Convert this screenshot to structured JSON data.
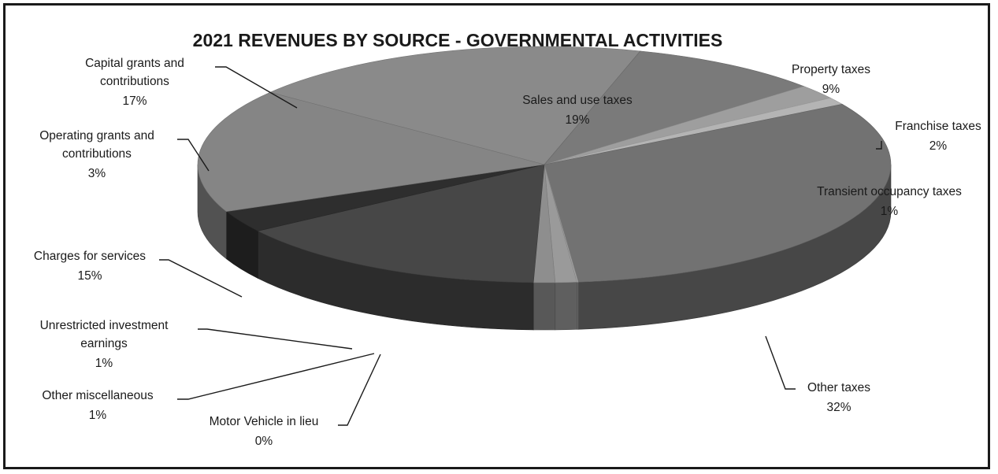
{
  "chart_data": {
    "type": "pie",
    "style": "3d",
    "title": "2021 REVENUES BY SOURCE - GOVERNMENTAL ACTIVITIES",
    "legend": "none",
    "slices": [
      {
        "label": "Sales and use taxes",
        "value": 19,
        "value_label": "19%"
      },
      {
        "label": "Property taxes",
        "value": 9,
        "value_label": "9%"
      },
      {
        "label": "Franchise taxes",
        "value": 2,
        "value_label": "2%"
      },
      {
        "label": "Transient occupancy taxes",
        "value": 1,
        "value_label": "1%"
      },
      {
        "label": "Other taxes",
        "value": 32,
        "value_label": "32%"
      },
      {
        "label": "Motor Vehicle in lieu",
        "value": 0,
        "value_label": "0%"
      },
      {
        "label": "Other miscellaneous",
        "value": 1,
        "value_label": "1%"
      },
      {
        "label": "Unrestricted investment earnings",
        "value": 1,
        "value_label": "1%"
      },
      {
        "label": "Charges for services",
        "value": 15,
        "value_label": "15%"
      },
      {
        "label": "Operating grants and contributions",
        "value": 3,
        "value_label": "3%"
      },
      {
        "label": "Capital grants and contributions",
        "value": 17,
        "value_label": "17%"
      }
    ],
    "colors": {
      "Sales and use taxes": "#8a8a8a",
      "Property taxes": "#7a7a7a",
      "Franchise taxes": "#9e9e9e",
      "Transient occupancy taxes": "#b4b4b4",
      "Other taxes": "#727272",
      "Motor Vehicle in lieu": "#a6a6a6",
      "Other miscellaneous": "#9a9a9a",
      "Unrestricted investment earnings": "#8e8e8e",
      "Charges for services": "#474747",
      "Operating grants and contributions": "#2e2e2e",
      "Capital grants and contributions": "#858585"
    }
  }
}
